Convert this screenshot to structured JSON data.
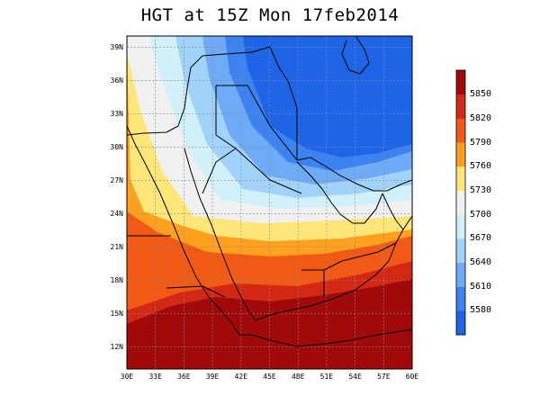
{
  "title": "HGT at 15Z Mon 17feb2014",
  "map": {
    "lat_ticks": [
      "39N",
      "36N",
      "33N",
      "30N",
      "27N",
      "24N",
      "21N",
      "18N",
      "15N",
      "12N"
    ],
    "lon_ticks": [
      "30E",
      "33E",
      "36E",
      "39E",
      "42E",
      "45E",
      "48E",
      "51E",
      "54E",
      "57E",
      "60E"
    ],
    "lat_range": [
      10,
      40
    ],
    "lon_range": [
      30,
      60
    ]
  },
  "colorbar": {
    "levels": [
      "5580",
      "5610",
      "5640",
      "5670",
      "5700",
      "5730",
      "5760",
      "5790",
      "5820",
      "5850"
    ],
    "colors": [
      "#1e64e6",
      "#3c82f0",
      "#6eaaf5",
      "#a0d2fa",
      "#d2f0fa",
      "#f0f0f0",
      "#ffe678",
      "#ffa01e",
      "#f05a14",
      "#d22814",
      "#a00a0a"
    ]
  }
}
